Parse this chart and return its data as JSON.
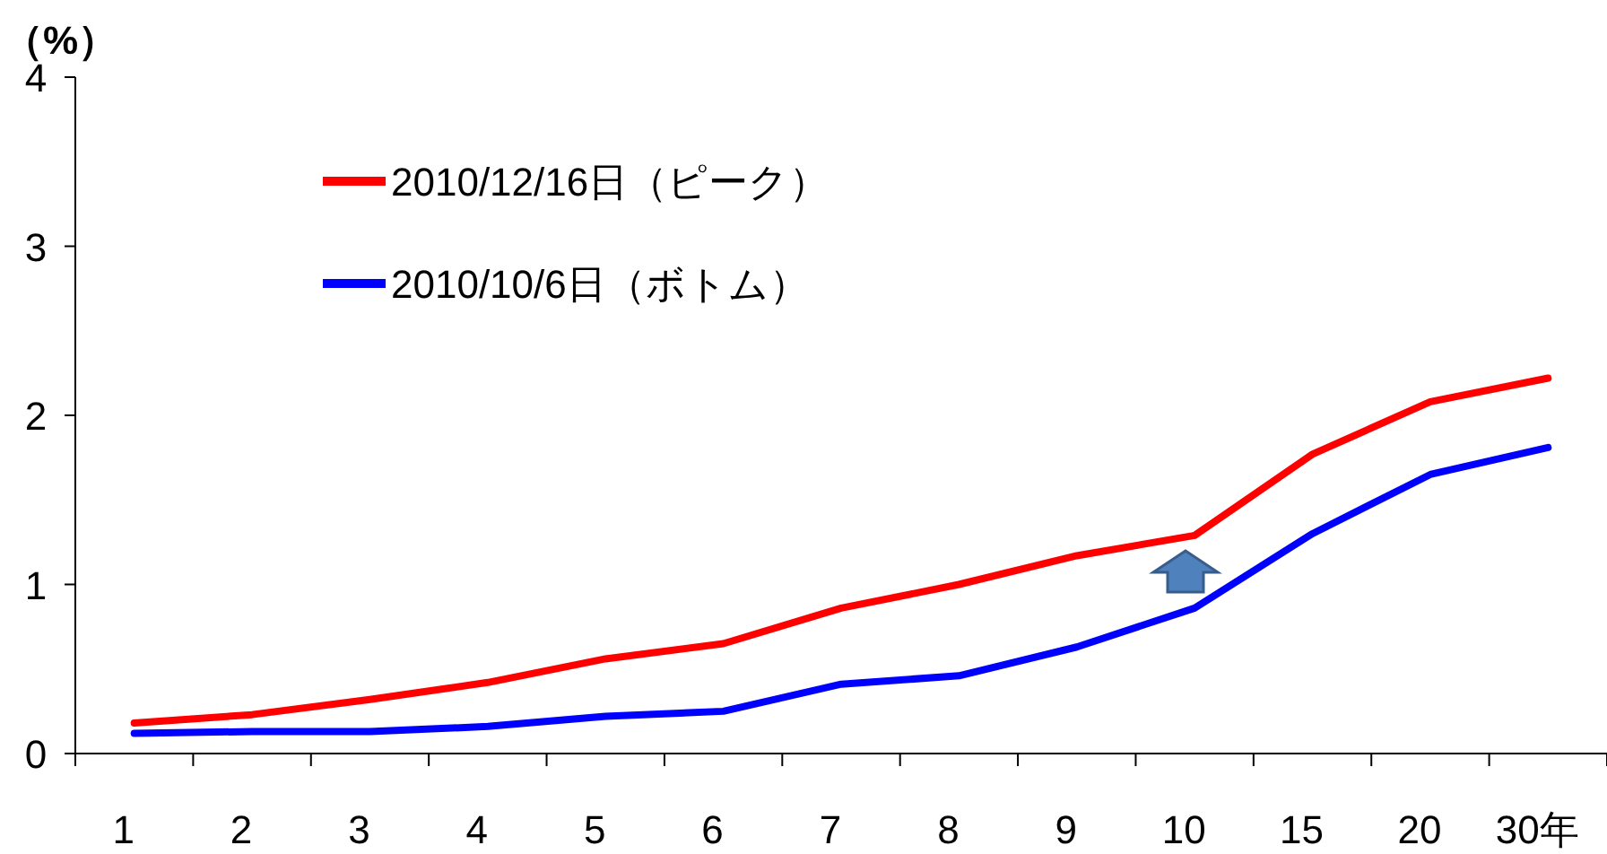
{
  "chart_data": {
    "type": "line",
    "ylabel": "（%）",
    "categories": [
      "1",
      "2",
      "3",
      "4",
      "5",
      "6",
      "7",
      "8",
      "9",
      "10",
      "15",
      "20",
      "30年"
    ],
    "series": [
      {
        "name": "2010/12/16日（ピーク）",
        "color": "#ff0000",
        "values": [
          0.18,
          0.23,
          0.32,
          0.42,
          0.56,
          0.65,
          0.86,
          1.0,
          1.17,
          1.29,
          1.77,
          2.08,
          2.22
        ]
      },
      {
        "name": "2010/10/6日（ボトム）",
        "color": "#0000ff",
        "values": [
          0.12,
          0.13,
          0.13,
          0.16,
          0.22,
          0.25,
          0.41,
          0.46,
          0.63,
          0.86,
          1.3,
          1.65,
          1.81
        ]
      }
    ],
    "ylim": [
      0,
      4
    ],
    "yticks": [
      0,
      1,
      2,
      3,
      4
    ],
    "legend": "top left"
  }
}
